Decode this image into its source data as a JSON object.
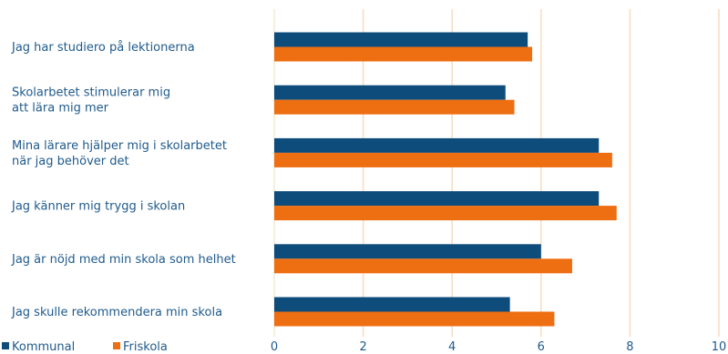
{
  "chart_data": {
    "type": "bar",
    "orientation": "horizontal",
    "categories": [
      [
        "Jag har studiero på lektionerna"
      ],
      [
        "Skolarbetet stimulerar mig",
        "att lära mig mer"
      ],
      [
        "Mina lärare hjälper mig i skolarbetet",
        "när jag behöver det"
      ],
      [
        "Jag känner mig trygg i skolan"
      ],
      [
        "Jag är nöjd med min skola som helhet"
      ],
      [
        "Jag skulle rekommendera min skola"
      ]
    ],
    "series": [
      {
        "name": "Kommunal",
        "color": "#0e4c7c",
        "values": [
          5.7,
          5.2,
          7.3,
          7.3,
          6.0,
          5.3
        ]
      },
      {
        "name": "Friskola",
        "color": "#ee6e12",
        "values": [
          5.8,
          5.4,
          7.6,
          7.7,
          6.7,
          6.3
        ]
      }
    ],
    "xlim": [
      0,
      10
    ],
    "xticks": [
      0,
      2,
      4,
      6,
      8,
      10
    ],
    "grid": true,
    "grid_color": "#f6dcc0",
    "legend_position": "bottom-left",
    "text_color": "#1f5a8c"
  }
}
